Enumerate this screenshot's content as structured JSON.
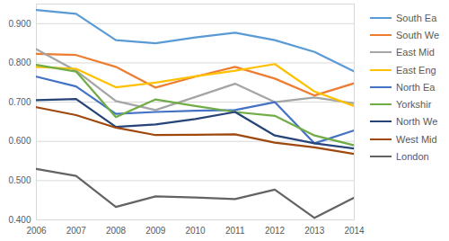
{
  "chart_data": {
    "type": "line",
    "x": [
      2006,
      2007,
      2008,
      2009,
      2010,
      2011,
      2012,
      2013,
      2014
    ],
    "xlim": [
      2006,
      2014
    ],
    "xticks": [
      2006,
      2007,
      2008,
      2009,
      2010,
      2011,
      2012,
      2013,
      2014
    ],
    "ylim": [
      0.4,
      0.95
    ],
    "yticks": [
      {
        "value": 0.4,
        "label": "0.400"
      },
      {
        "value": 0.5,
        "label": "0.500"
      },
      {
        "value": 0.6,
        "label": "0.600"
      },
      {
        "value": 0.7,
        "label": "0.700"
      },
      {
        "value": 0.8,
        "label": "0.800"
      },
      {
        "value": 0.9,
        "label": "0.900"
      }
    ],
    "grid": true,
    "legend": "right",
    "series": [
      {
        "name": "South Ea",
        "color": "#5b9bd5",
        "values": [
          0.935,
          0.925,
          0.858,
          0.85,
          0.865,
          0.877,
          0.858,
          0.828,
          0.778
        ]
      },
      {
        "name": "South We",
        "color": "#ed7d31",
        "values": [
          0.823,
          0.82,
          0.79,
          0.737,
          0.765,
          0.79,
          0.76,
          0.717,
          0.748
        ]
      },
      {
        "name": "East Mid",
        "color": "#a5a5a5",
        "values": [
          0.835,
          0.78,
          0.703,
          0.68,
          0.713,
          0.747,
          0.7,
          0.712,
          0.697
        ]
      },
      {
        "name": "East Eng",
        "color": "#ffc000",
        "values": [
          0.79,
          0.785,
          0.738,
          0.75,
          0.766,
          0.78,
          0.797,
          0.727,
          0.69
        ]
      },
      {
        "name": "North Ea",
        "color": "#4472c4",
        "values": [
          0.765,
          0.74,
          0.67,
          0.675,
          0.678,
          0.68,
          0.7,
          0.595,
          0.628
        ]
      },
      {
        "name": "Yorkshir",
        "color": "#70ad47",
        "values": [
          0.795,
          0.778,
          0.662,
          0.707,
          0.69,
          0.675,
          0.665,
          0.615,
          0.59
        ]
      },
      {
        "name": "North We",
        "color": "#264478",
        "values": [
          0.705,
          0.708,
          0.637,
          0.643,
          0.657,
          0.675,
          0.615,
          0.595,
          0.582
        ]
      },
      {
        "name": "West Mid",
        "color": "#9e480e",
        "values": [
          0.687,
          0.667,
          0.635,
          0.616,
          0.617,
          0.618,
          0.597,
          0.585,
          0.568
        ]
      },
      {
        "name": "London",
        "color": "#636363",
        "values": [
          0.53,
          0.512,
          0.433,
          0.46,
          0.457,
          0.453,
          0.477,
          0.405,
          0.457
        ]
      }
    ]
  }
}
